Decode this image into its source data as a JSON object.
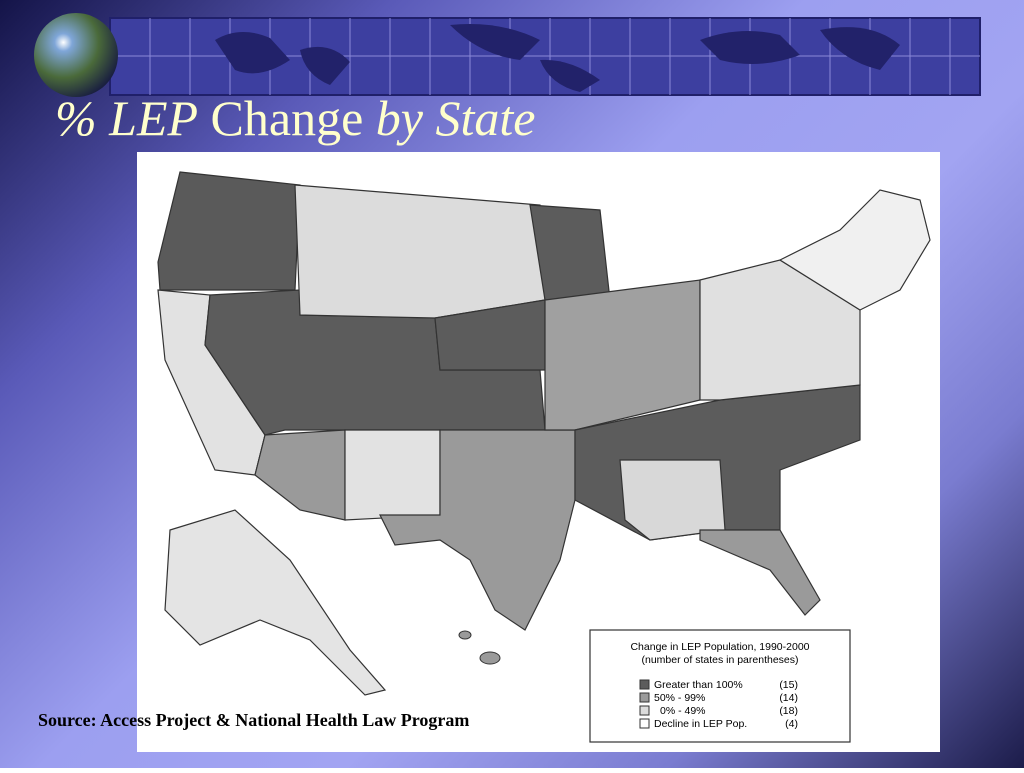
{
  "title": {
    "part1": "% LEP",
    "part2": "Change",
    "part3": "by State"
  },
  "legend": {
    "title_line1": "Change in LEP Population, 1990-2000",
    "title_line2": "(number of states in parentheses)",
    "items": [
      {
        "label": "Greater than 100%",
        "count": "(15)"
      },
      {
        "label": "50% - 99%",
        "count": "(14)"
      },
      {
        "label": "0% - 49%",
        "count": "(18)"
      },
      {
        "label": "Decline in LEP Pop.",
        "count": "(4)"
      }
    ]
  },
  "source": "Source: Access Project & National Health Law Program"
}
